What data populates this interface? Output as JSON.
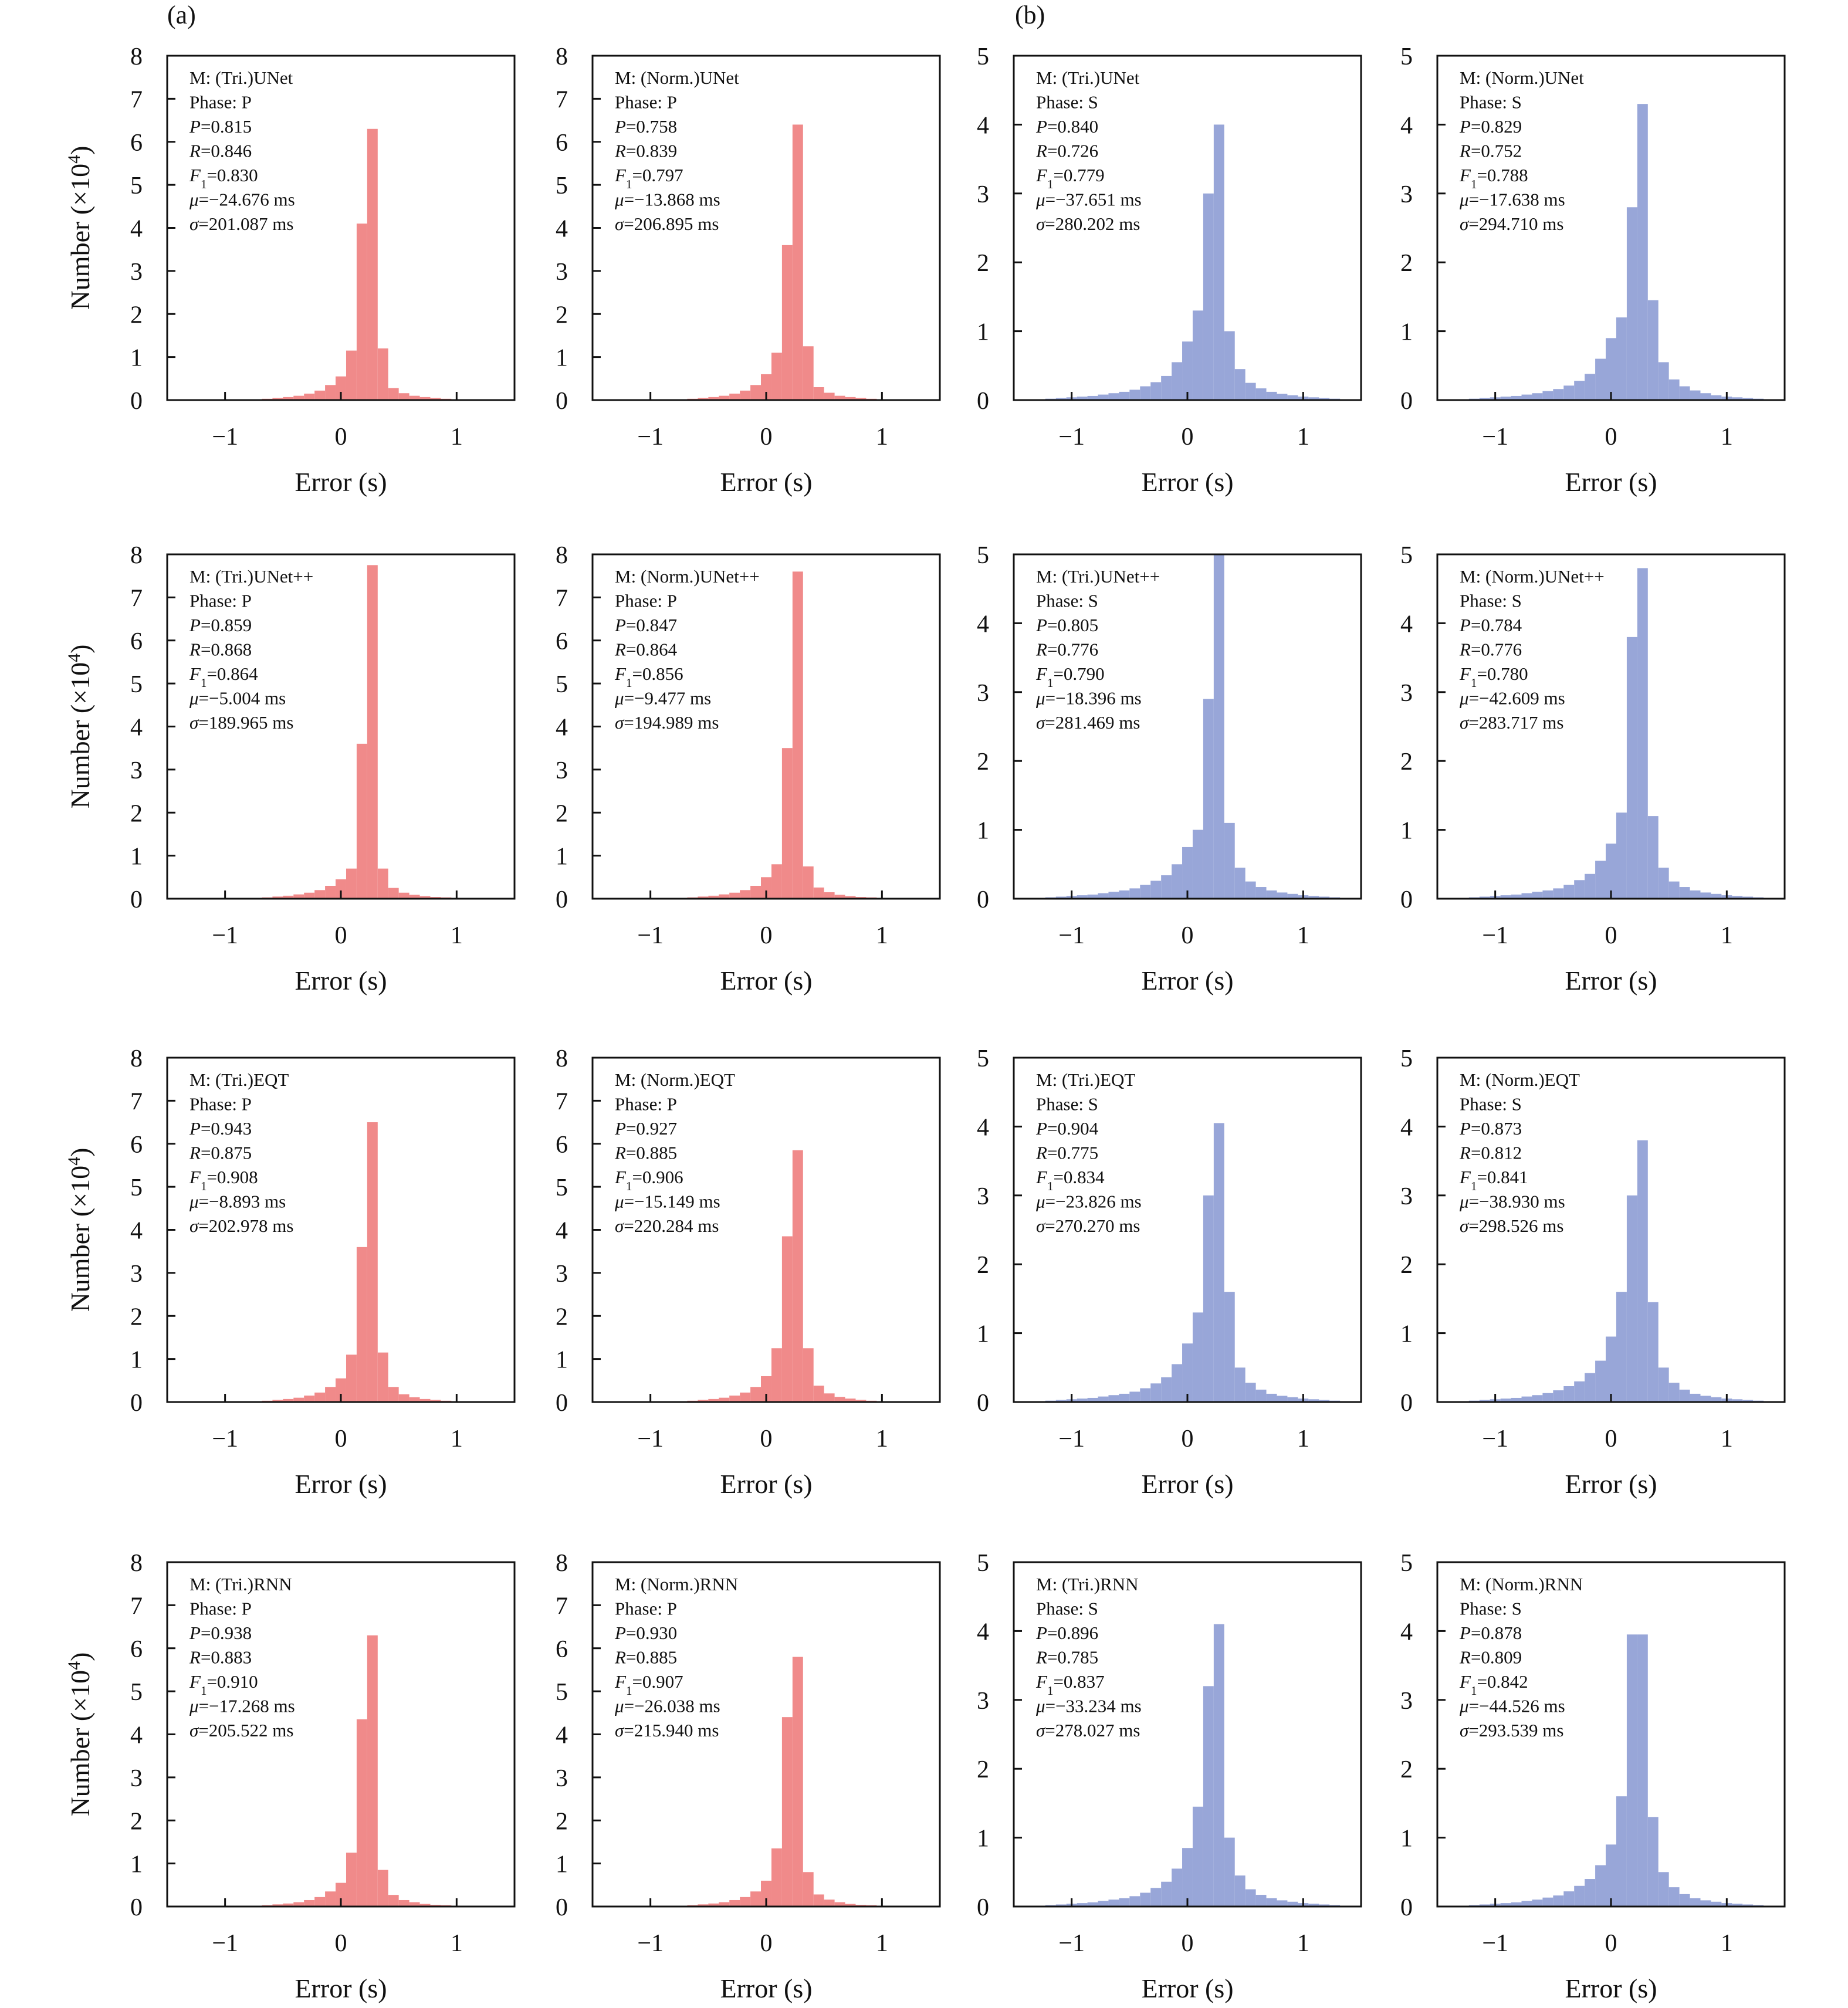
{
  "panel_labels": [
    "(a)",
    "(b)"
  ],
  "chart_data": [
    {
      "type": "histogram",
      "model": "(Tri.)UNet",
      "phase": "P",
      "P": "0.815",
      "R": "0.846",
      "F1": "0.830",
      "mu": "−24.676 ms",
      "sigma": "201.087 ms",
      "xlabel": "Error (s)",
      "ylabel": "Number (×10",
      "ylabel_sup": "4",
      "ylabel_close": ")",
      "ylim": [
        0,
        8
      ],
      "xlim": [
        -1.5,
        1.5
      ],
      "color": "#f08a8a",
      "values": [
        0,
        0,
        0,
        0,
        0,
        0,
        0,
        0.01,
        0.02,
        0.03,
        0.05,
        0.07,
        0.1,
        0.15,
        0.22,
        0.35,
        0.55,
        1.15,
        4.1,
        6.3,
        1.2,
        0.28,
        0.16,
        0.1,
        0.07,
        0.05,
        0.03,
        0.02,
        0.01,
        0,
        0,
        0,
        0
      ]
    },
    {
      "type": "histogram",
      "model": "(Norm.)UNet",
      "phase": "P",
      "P": "0.758",
      "R": "0.839",
      "F1": "0.797",
      "mu": "−13.868 ms",
      "sigma": "206.895 ms",
      "xlabel": "Error (s)",
      "ylabel": "",
      "ylim": [
        0,
        8
      ],
      "xlim": [
        -1.5,
        1.5
      ],
      "color": "#f08a8a",
      "values": [
        0,
        0,
        0,
        0,
        0,
        0,
        0,
        0.01,
        0.02,
        0.03,
        0.05,
        0.07,
        0.1,
        0.15,
        0.22,
        0.35,
        0.6,
        1.1,
        3.6,
        6.4,
        1.25,
        0.3,
        0.17,
        0.1,
        0.07,
        0.05,
        0.03,
        0.02,
        0.01,
        0,
        0,
        0,
        0
      ]
    },
    {
      "type": "histogram",
      "model": "(Tri.)UNet",
      "phase": "S",
      "P": "0.840",
      "R": "0.726",
      "F1": "0.779",
      "mu": "−37.651 ms",
      "sigma": "280.202 ms",
      "xlabel": "Error (s)",
      "ylabel": "",
      "ylim": [
        0,
        5
      ],
      "xlim": [
        -1.5,
        1.5
      ],
      "color": "#98a6d8",
      "values": [
        0,
        0,
        0.01,
        0.02,
        0.03,
        0.04,
        0.05,
        0.06,
        0.08,
        0.1,
        0.12,
        0.15,
        0.2,
        0.26,
        0.35,
        0.55,
        0.85,
        1.3,
        3.0,
        4.0,
        1.0,
        0.45,
        0.25,
        0.17,
        0.12,
        0.09,
        0.07,
        0.05,
        0.04,
        0.03,
        0.02,
        0.01,
        0
      ]
    },
    {
      "type": "histogram",
      "model": "(Norm.)UNet",
      "phase": "S",
      "P": "0.829",
      "R": "0.752",
      "F1": "0.788",
      "mu": "−17.638 ms",
      "sigma": "294.710 ms",
      "xlabel": "Error (s)",
      "ylabel": "",
      "ylim": [
        0,
        5
      ],
      "xlim": [
        -1.5,
        1.5
      ],
      "color": "#98a6d8",
      "values": [
        0,
        0,
        0.01,
        0.02,
        0.03,
        0.04,
        0.05,
        0.06,
        0.08,
        0.1,
        0.13,
        0.16,
        0.21,
        0.28,
        0.38,
        0.6,
        0.9,
        1.2,
        2.8,
        4.3,
        1.45,
        0.55,
        0.3,
        0.2,
        0.14,
        0.1,
        0.07,
        0.05,
        0.04,
        0.03,
        0.02,
        0.01,
        0
      ]
    },
    {
      "type": "histogram",
      "model": "(Tri.)UNet++",
      "phase": "P",
      "P": "0.859",
      "R": "0.868",
      "F1": "0.864",
      "mu": "−5.004 ms",
      "sigma": "189.965 ms",
      "xlabel": "Error (s)",
      "ylabel": "Number (×10",
      "ylabel_sup": "4",
      "ylabel_close": ")",
      "ylim": [
        0,
        8
      ],
      "xlim": [
        -1.5,
        1.5
      ],
      "color": "#f08a8a",
      "values": [
        0,
        0,
        0,
        0,
        0,
        0,
        0,
        0.01,
        0.02,
        0.03,
        0.05,
        0.07,
        0.1,
        0.14,
        0.2,
        0.3,
        0.45,
        0.7,
        3.6,
        7.75,
        0.7,
        0.25,
        0.14,
        0.09,
        0.06,
        0.04,
        0.03,
        0.02,
        0.01,
        0,
        0,
        0,
        0
      ]
    },
    {
      "type": "histogram",
      "model": "(Norm.)UNet++",
      "phase": "P",
      "P": "0.847",
      "R": "0.864",
      "F1": "0.856",
      "mu": "−9.477 ms",
      "sigma": "194.989 ms",
      "xlabel": "Error (s)",
      "ylabel": "",
      "ylim": [
        0,
        8
      ],
      "xlim": [
        -1.5,
        1.5
      ],
      "color": "#f08a8a",
      "values": [
        0,
        0,
        0,
        0,
        0,
        0,
        0,
        0.01,
        0.02,
        0.03,
        0.05,
        0.07,
        0.1,
        0.14,
        0.2,
        0.3,
        0.5,
        0.8,
        3.5,
        7.6,
        0.75,
        0.26,
        0.15,
        0.09,
        0.06,
        0.04,
        0.03,
        0.02,
        0.01,
        0,
        0,
        0,
        0
      ]
    },
    {
      "type": "histogram",
      "model": "(Tri.)UNet++",
      "phase": "S",
      "P": "0.805",
      "R": "0.776",
      "F1": "0.790",
      "mu": "−18.396 ms",
      "sigma": "281.469 ms",
      "xlabel": "Error (s)",
      "ylabel": "",
      "ylim": [
        0,
        5
      ],
      "xlim": [
        -1.5,
        1.5
      ],
      "color": "#98a6d8",
      "values": [
        0,
        0,
        0.01,
        0.02,
        0.03,
        0.04,
        0.05,
        0.06,
        0.08,
        0.1,
        0.12,
        0.15,
        0.2,
        0.26,
        0.34,
        0.5,
        0.75,
        1.0,
        2.9,
        5.0,
        1.1,
        0.45,
        0.25,
        0.17,
        0.12,
        0.09,
        0.07,
        0.05,
        0.04,
        0.03,
        0.02,
        0.01,
        0
      ]
    },
    {
      "type": "histogram",
      "model": "(Norm.)UNet++",
      "phase": "S",
      "P": "0.784",
      "R": "0.776",
      "F1": "0.780",
      "mu": "−42.609 ms",
      "sigma": "283.717 ms",
      "xlabel": "Error (s)",
      "ylabel": "",
      "ylim": [
        0,
        5
      ],
      "xlim": [
        -1.5,
        1.5
      ],
      "color": "#98a6d8",
      "values": [
        0,
        0,
        0.01,
        0.02,
        0.03,
        0.04,
        0.05,
        0.06,
        0.08,
        0.1,
        0.12,
        0.15,
        0.2,
        0.27,
        0.36,
        0.55,
        0.8,
        1.25,
        3.8,
        4.8,
        1.2,
        0.45,
        0.25,
        0.17,
        0.12,
        0.09,
        0.07,
        0.05,
        0.04,
        0.03,
        0.02,
        0.01,
        0
      ]
    },
    {
      "type": "histogram",
      "model": "(Tri.)EQT",
      "phase": "P",
      "P": "0.943",
      "R": "0.875",
      "F1": "0.908",
      "mu": "−8.893 ms",
      "sigma": "202.978 ms",
      "xlabel": "Error (s)",
      "ylabel": "Number (×10",
      "ylabel_sup": "4",
      "ylabel_close": ")",
      "ylim": [
        0,
        8
      ],
      "xlim": [
        -1.5,
        1.5
      ],
      "color": "#f08a8a",
      "values": [
        0,
        0,
        0,
        0,
        0,
        0,
        0,
        0.01,
        0.02,
        0.03,
        0.05,
        0.07,
        0.1,
        0.15,
        0.22,
        0.35,
        0.55,
        1.1,
        3.6,
        6.5,
        1.15,
        0.35,
        0.18,
        0.11,
        0.07,
        0.05,
        0.03,
        0.02,
        0.01,
        0,
        0,
        0,
        0
      ]
    },
    {
      "type": "histogram",
      "model": "(Norm.)EQT",
      "phase": "P",
      "P": "0.927",
      "R": "0.885",
      "F1": "0.906",
      "mu": "−15.149 ms",
      "sigma": "220.284 ms",
      "xlabel": "Error (s)",
      "ylabel": "",
      "ylim": [
        0,
        8
      ],
      "xlim": [
        -1.5,
        1.5
      ],
      "color": "#f08a8a",
      "values": [
        0,
        0,
        0,
        0,
        0,
        0,
        0,
        0.01,
        0.02,
        0.03,
        0.05,
        0.07,
        0.1,
        0.15,
        0.22,
        0.35,
        0.6,
        1.25,
        3.85,
        5.85,
        1.25,
        0.38,
        0.2,
        0.12,
        0.08,
        0.05,
        0.03,
        0.02,
        0.01,
        0,
        0,
        0,
        0
      ]
    },
    {
      "type": "histogram",
      "model": "(Tri.)EQT",
      "phase": "S",
      "P": "0.904",
      "R": "0.775",
      "F1": "0.834",
      "mu": "−23.826 ms",
      "sigma": "270.270 ms",
      "xlabel": "Error (s)",
      "ylabel": "",
      "ylim": [
        0,
        5
      ],
      "xlim": [
        -1.5,
        1.5
      ],
      "color": "#98a6d8",
      "values": [
        0,
        0,
        0.01,
        0.02,
        0.03,
        0.04,
        0.05,
        0.06,
        0.08,
        0.1,
        0.12,
        0.15,
        0.2,
        0.27,
        0.36,
        0.55,
        0.85,
        1.3,
        3.0,
        4.05,
        1.6,
        0.5,
        0.28,
        0.18,
        0.12,
        0.09,
        0.07,
        0.05,
        0.04,
        0.03,
        0.02,
        0.01,
        0
      ]
    },
    {
      "type": "histogram",
      "model": "(Norm.)EQT",
      "phase": "S",
      "P": "0.873",
      "R": "0.812",
      "F1": "0.841",
      "mu": "−38.930 ms",
      "sigma": "298.526 ms",
      "xlabel": "Error (s)",
      "ylabel": "",
      "ylim": [
        0,
        5
      ],
      "xlim": [
        -1.5,
        1.5
      ],
      "color": "#98a6d8",
      "values": [
        0,
        0,
        0.01,
        0.02,
        0.03,
        0.04,
        0.05,
        0.06,
        0.08,
        0.1,
        0.13,
        0.17,
        0.23,
        0.3,
        0.42,
        0.6,
        0.95,
        1.6,
        3.0,
        3.8,
        1.45,
        0.5,
        0.28,
        0.18,
        0.12,
        0.09,
        0.07,
        0.05,
        0.04,
        0.03,
        0.02,
        0.01,
        0
      ]
    },
    {
      "type": "histogram",
      "model": "(Tri.)RNN",
      "phase": "P",
      "P": "0.938",
      "R": "0.883",
      "F1": "0.910",
      "mu": "−17.268 ms",
      "sigma": "205.522 ms",
      "xlabel": "Error (s)",
      "ylabel": "Number (×10",
      "ylabel_sup": "4",
      "ylabel_close": ")",
      "ylim": [
        0,
        8
      ],
      "xlim": [
        -1.5,
        1.5
      ],
      "color": "#f08a8a",
      "values": [
        0,
        0,
        0,
        0,
        0,
        0,
        0,
        0.01,
        0.02,
        0.03,
        0.05,
        0.07,
        0.1,
        0.15,
        0.22,
        0.35,
        0.55,
        1.25,
        4.35,
        6.3,
        0.85,
        0.27,
        0.15,
        0.1,
        0.06,
        0.04,
        0.03,
        0.02,
        0.01,
        0,
        0,
        0,
        0
      ]
    },
    {
      "type": "histogram",
      "model": "(Norm.)RNN",
      "phase": "P",
      "P": "0.930",
      "R": "0.885",
      "F1": "0.907",
      "mu": "−26.038 ms",
      "sigma": "215.940 ms",
      "xlabel": "Error (s)",
      "ylabel": "",
      "ylim": [
        0,
        8
      ],
      "xlim": [
        -1.5,
        1.5
      ],
      "color": "#f08a8a",
      "values": [
        0,
        0,
        0,
        0,
        0,
        0,
        0,
        0.01,
        0.02,
        0.03,
        0.05,
        0.07,
        0.1,
        0.15,
        0.22,
        0.35,
        0.6,
        1.35,
        4.4,
        5.8,
        0.8,
        0.28,
        0.16,
        0.1,
        0.06,
        0.04,
        0.03,
        0.02,
        0.01,
        0,
        0,
        0,
        0
      ]
    },
    {
      "type": "histogram",
      "model": "(Tri.)RNN",
      "phase": "S",
      "P": "0.896",
      "R": "0.785",
      "F1": "0.837",
      "mu": "−33.234 ms",
      "sigma": "278.027 ms",
      "xlabel": "Error (s)",
      "ylabel": "",
      "ylim": [
        0,
        5
      ],
      "xlim": [
        -1.5,
        1.5
      ],
      "color": "#98a6d8",
      "values": [
        0,
        0,
        0.01,
        0.02,
        0.03,
        0.04,
        0.05,
        0.06,
        0.08,
        0.1,
        0.12,
        0.15,
        0.2,
        0.27,
        0.36,
        0.55,
        0.85,
        1.45,
        3.2,
        4.1,
        1.0,
        0.45,
        0.25,
        0.17,
        0.12,
        0.09,
        0.07,
        0.05,
        0.04,
        0.03,
        0.02,
        0.01,
        0
      ]
    },
    {
      "type": "histogram",
      "model": "(Norm.)RNN",
      "phase": "S",
      "P": "0.878",
      "R": "0.809",
      "F1": "0.842",
      "mu": "−44.526 ms",
      "sigma": "293.539 ms",
      "xlabel": "Error (s)",
      "ylabel": "",
      "ylim": [
        0,
        5
      ],
      "xlim": [
        -1.5,
        1.5
      ],
      "color": "#98a6d8",
      "values": [
        0,
        0,
        0.01,
        0.02,
        0.03,
        0.04,
        0.05,
        0.06,
        0.08,
        0.1,
        0.13,
        0.16,
        0.22,
        0.3,
        0.4,
        0.6,
        0.9,
        1.6,
        3.95,
        3.95,
        1.3,
        0.5,
        0.28,
        0.18,
        0.12,
        0.09,
        0.07,
        0.05,
        0.04,
        0.03,
        0.02,
        0.01,
        0
      ]
    }
  ]
}
